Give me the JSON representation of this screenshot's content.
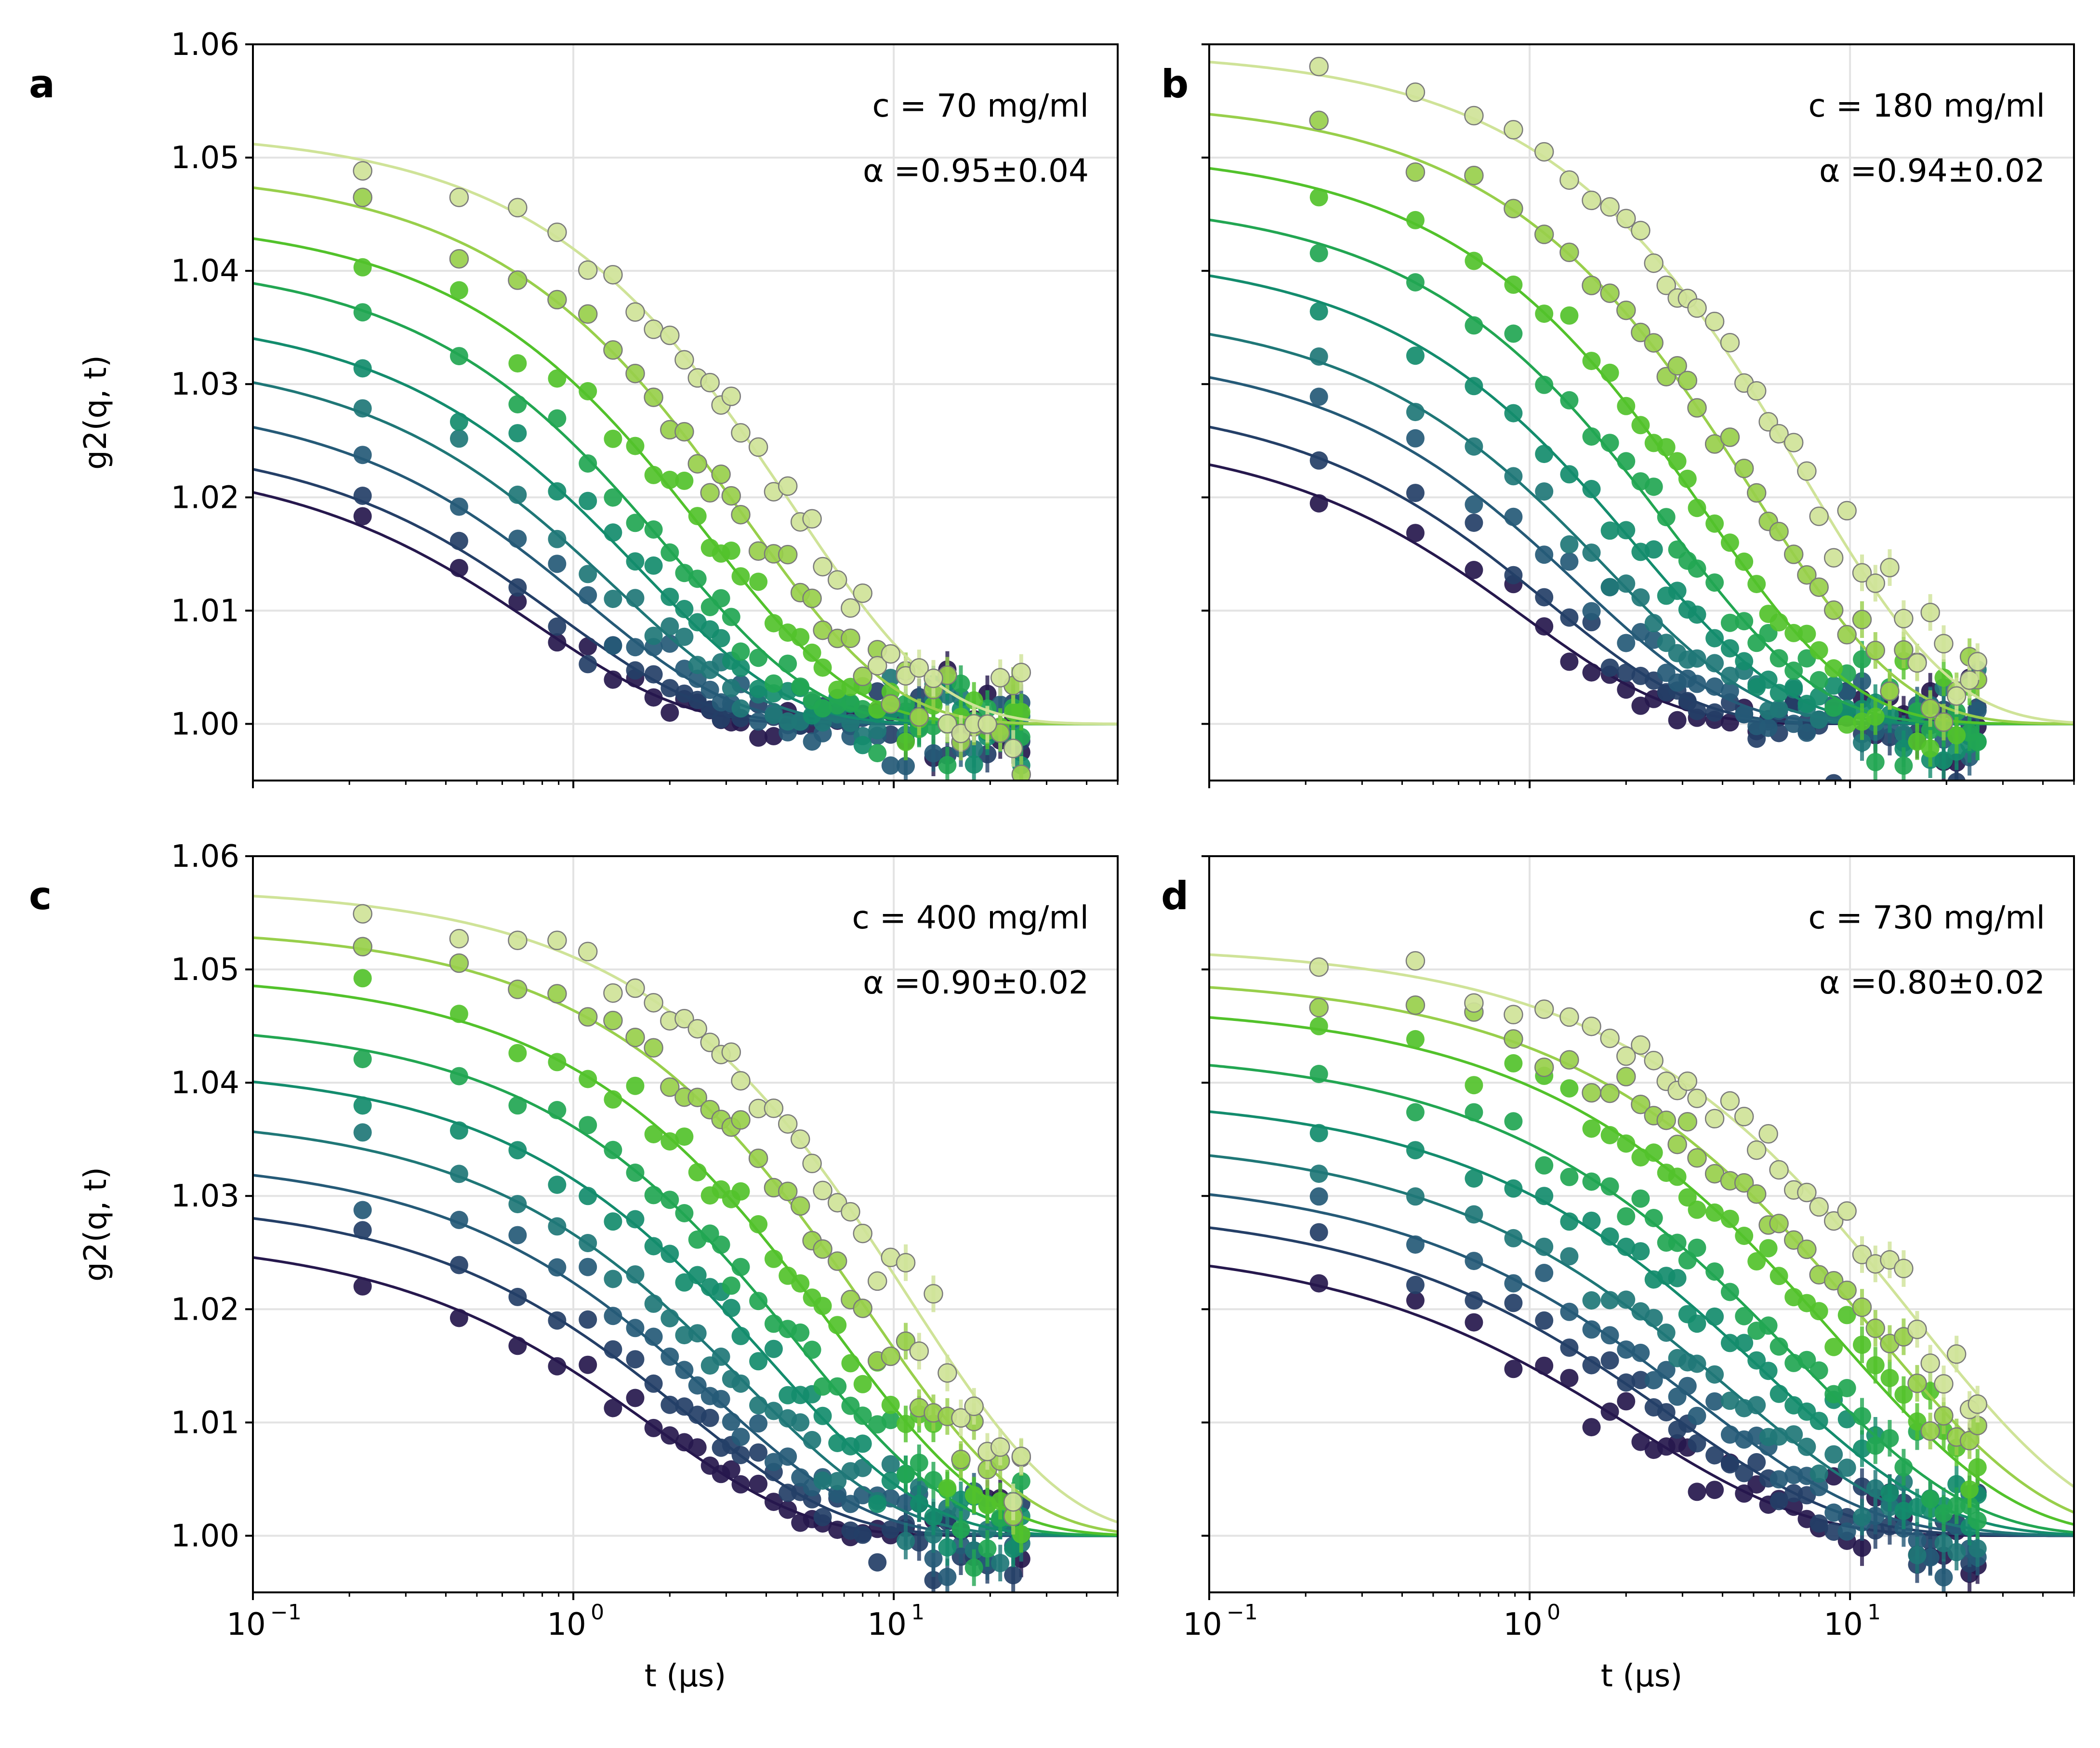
{
  "figure": {
    "x_axis_label": "t (µs)",
    "y_axis_label": "g2(q, t)",
    "x_scale": "log",
    "xlim": [
      0.1,
      50
    ],
    "ylim": [
      0.995,
      1.06
    ],
    "x_tick_labels": [
      "10",
      "10",
      "10"
    ],
    "x_tick_exponents": [
      "−1",
      "0",
      "1"
    ],
    "y_tick_labels": [
      "1.00",
      "1.01",
      "1.02",
      "1.03",
      "1.04",
      "1.05",
      "1.06"
    ],
    "grid": true,
    "colormap": [
      "#26184d",
      "#243f67",
      "#255a77",
      "#1f7777",
      "#138c6d",
      "#22a652",
      "#52c22b",
      "#98cf4b",
      "#cfe398"
    ]
  },
  "panels": [
    {
      "letter": "a",
      "concentration": "c = 70 mg/ml",
      "alpha": "α =0.95±0.04"
    },
    {
      "letter": "b",
      "concentration": "c = 180 mg/ml",
      "alpha": "α =0.94±0.02"
    },
    {
      "letter": "c",
      "concentration": "c = 400 mg/ml",
      "alpha": "α =0.90±0.02"
    },
    {
      "letter": "d",
      "concentration": "c = 730 mg/ml",
      "alpha": "α =0.80±0.02"
    }
  ],
  "chart_data": [
    {
      "type": "scatter",
      "panel": "a",
      "xlim": [
        0.1,
        50
      ],
      "ylim": [
        0.995,
        1.06
      ],
      "x_scale": "log",
      "fit_model": "1 + beta * exp(-2 (t / tau)^alpha)",
      "alpha": 0.95,
      "curves": [
        {
          "beta": 0.0236,
          "tau": 1.6
        },
        {
          "beta": 0.0254,
          "tau": 1.9
        },
        {
          "beta": 0.029,
          "tau": 2.3
        },
        {
          "beta": 0.0328,
          "tau": 2.8
        },
        {
          "beta": 0.0365,
          "tau": 3.4
        },
        {
          "beta": 0.0412,
          "tau": 4.2
        },
        {
          "beta": 0.0448,
          "tau": 5.5
        },
        {
          "beta": 0.049,
          "tau": 7.2
        },
        {
          "beta": 0.0525,
          "tau": 10.0
        }
      ]
    },
    {
      "type": "scatter",
      "panel": "b",
      "xlim": [
        0.1,
        50
      ],
      "ylim": [
        0.995,
        1.06
      ],
      "x_scale": "log",
      "fit_model": "1 + beta * exp(-2 (t / tau)^alpha)",
      "alpha": 0.94,
      "curves": [
        {
          "beta": 0.0258,
          "tau": 2.0
        },
        {
          "beta": 0.029,
          "tau": 2.4
        },
        {
          "beta": 0.0332,
          "tau": 3.0
        },
        {
          "beta": 0.0368,
          "tau": 3.7
        },
        {
          "beta": 0.0418,
          "tau": 4.6
        },
        {
          "beta": 0.0465,
          "tau": 5.8
        },
        {
          "beta": 0.0508,
          "tau": 7.4
        },
        {
          "beta": 0.0552,
          "tau": 10.5
        },
        {
          "beta": 0.0595,
          "tau": 15.0
        }
      ]
    },
    {
      "type": "scatter",
      "panel": "c",
      "xlim": [
        0.1,
        50
      ],
      "ylim": [
        0.995,
        1.06
      ],
      "x_scale": "log",
      "fit_model": "1 + beta * exp(-2 (t / tau)^alpha)",
      "alpha": 0.9,
      "curves": [
        {
          "beta": 0.0265,
          "tau": 3.8
        },
        {
          "beta": 0.0298,
          "tau": 4.8
        },
        {
          "beta": 0.0335,
          "tau": 5.9
        },
        {
          "beta": 0.0372,
          "tau": 7.3
        },
        {
          "beta": 0.0415,
          "tau": 9.0
        },
        {
          "beta": 0.0455,
          "tau": 11.0
        },
        {
          "beta": 0.0497,
          "tau": 14.0
        },
        {
          "beta": 0.0538,
          "tau": 18.0
        },
        {
          "beta": 0.0573,
          "tau": 24.0
        }
      ]
    },
    {
      "type": "scatter",
      "panel": "d",
      "xlim": [
        0.1,
        50
      ],
      "ylim": [
        0.995,
        1.06
      ],
      "x_scale": "log",
      "fit_model": "1 + beta * exp(-2 (t / tau)^alpha)",
      "alpha": 0.8,
      "curves": [
        {
          "beta": 0.026,
          "tau": 5.0
        },
        {
          "beta": 0.0292,
          "tau": 6.5
        },
        {
          "beta": 0.032,
          "tau": 8.0
        },
        {
          "beta": 0.0353,
          "tau": 10.0
        },
        {
          "beta": 0.039,
          "tau": 13.0
        },
        {
          "beta": 0.043,
          "tau": 16.0
        },
        {
          "beta": 0.047,
          "tau": 22.0
        },
        {
          "beta": 0.0495,
          "tau": 28.0
        },
        {
          "beta": 0.0522,
          "tau": 38.0
        }
      ]
    }
  ]
}
